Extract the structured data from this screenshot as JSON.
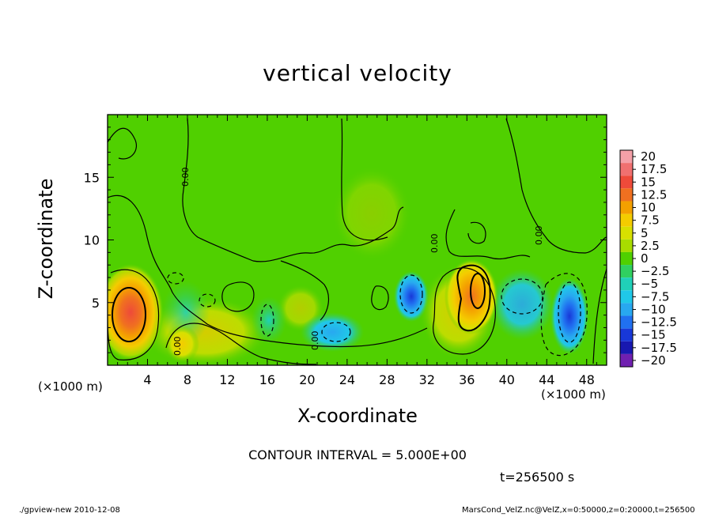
{
  "title": "vertical velocity",
  "x_label": "X-coordinate",
  "y_label": "Z-coordinate",
  "x_unit_left": "(×1000 m)",
  "x_unit_right": "(×1000 m)",
  "contour_interval_text": "CONTOUR INTERVAL = 5.000E+00",
  "time_text": "t=256500 s",
  "footer_left": "./gpview-new   2010-12-08",
  "footer_right": "MarsCond_VelZ.nc@VelZ,x=0:50000,z=0:20000,t=256500",
  "contour_labels": [
    "0.00",
    "0.00",
    "0.00",
    "0.00",
    "0.00"
  ],
  "chart_data": {
    "type": "heatmap",
    "title": "vertical velocity",
    "xlabel": "X-coordinate",
    "ylabel": "Z-coordinate",
    "x_unit": "×1000 m",
    "xlim": [
      0,
      50
    ],
    "ylim": [
      0,
      20
    ],
    "x_ticks": [
      4,
      8,
      12,
      16,
      20,
      24,
      28,
      32,
      36,
      40,
      44,
      48
    ],
    "y_ticks": [
      5,
      10,
      15
    ],
    "contour_interval": 5.0,
    "colorbar": {
      "levels": [
        "20",
        "17.5",
        "15",
        "12.5",
        "10",
        "7.5",
        "5",
        "2.5",
        "0",
        "−2.5",
        "−5",
        "−7.5",
        "−10",
        "−12.5",
        "−15",
        "−17.5",
        "−20"
      ],
      "colors": [
        "#f4a0a8",
        "#f07070",
        "#ee4a3a",
        "#f07020",
        "#f4a000",
        "#f4cc00",
        "#d8e000",
        "#a8dc00",
        "#50d000",
        "#30d060",
        "#20d0b8",
        "#20c8e8",
        "#28a8f0",
        "#2070f0",
        "#1838d8",
        "#1818b0",
        "#7020b0"
      ]
    },
    "features": [
      {
        "kind": "updraft",
        "x": 2.5,
        "z": 4.0,
        "peak": 15,
        "label": "strong positive cell"
      },
      {
        "kind": "updraft",
        "x": 37,
        "z": 5.5,
        "peak": 10,
        "label": "positive cell"
      },
      {
        "kind": "updraft",
        "x": 8,
        "z": 2.0,
        "peak": 5,
        "label": "weak positive cell"
      },
      {
        "kind": "downdraft",
        "x": 30,
        "z": 5.5,
        "peak": -10,
        "label": "negative cell"
      },
      {
        "kind": "downdraft",
        "x": 46,
        "z": 4.5,
        "peak": -12.5,
        "label": "strong negative cell"
      },
      {
        "kind": "downdraft",
        "x": 23,
        "z": 3.0,
        "peak": -5,
        "label": "weak negative cell"
      }
    ]
  }
}
